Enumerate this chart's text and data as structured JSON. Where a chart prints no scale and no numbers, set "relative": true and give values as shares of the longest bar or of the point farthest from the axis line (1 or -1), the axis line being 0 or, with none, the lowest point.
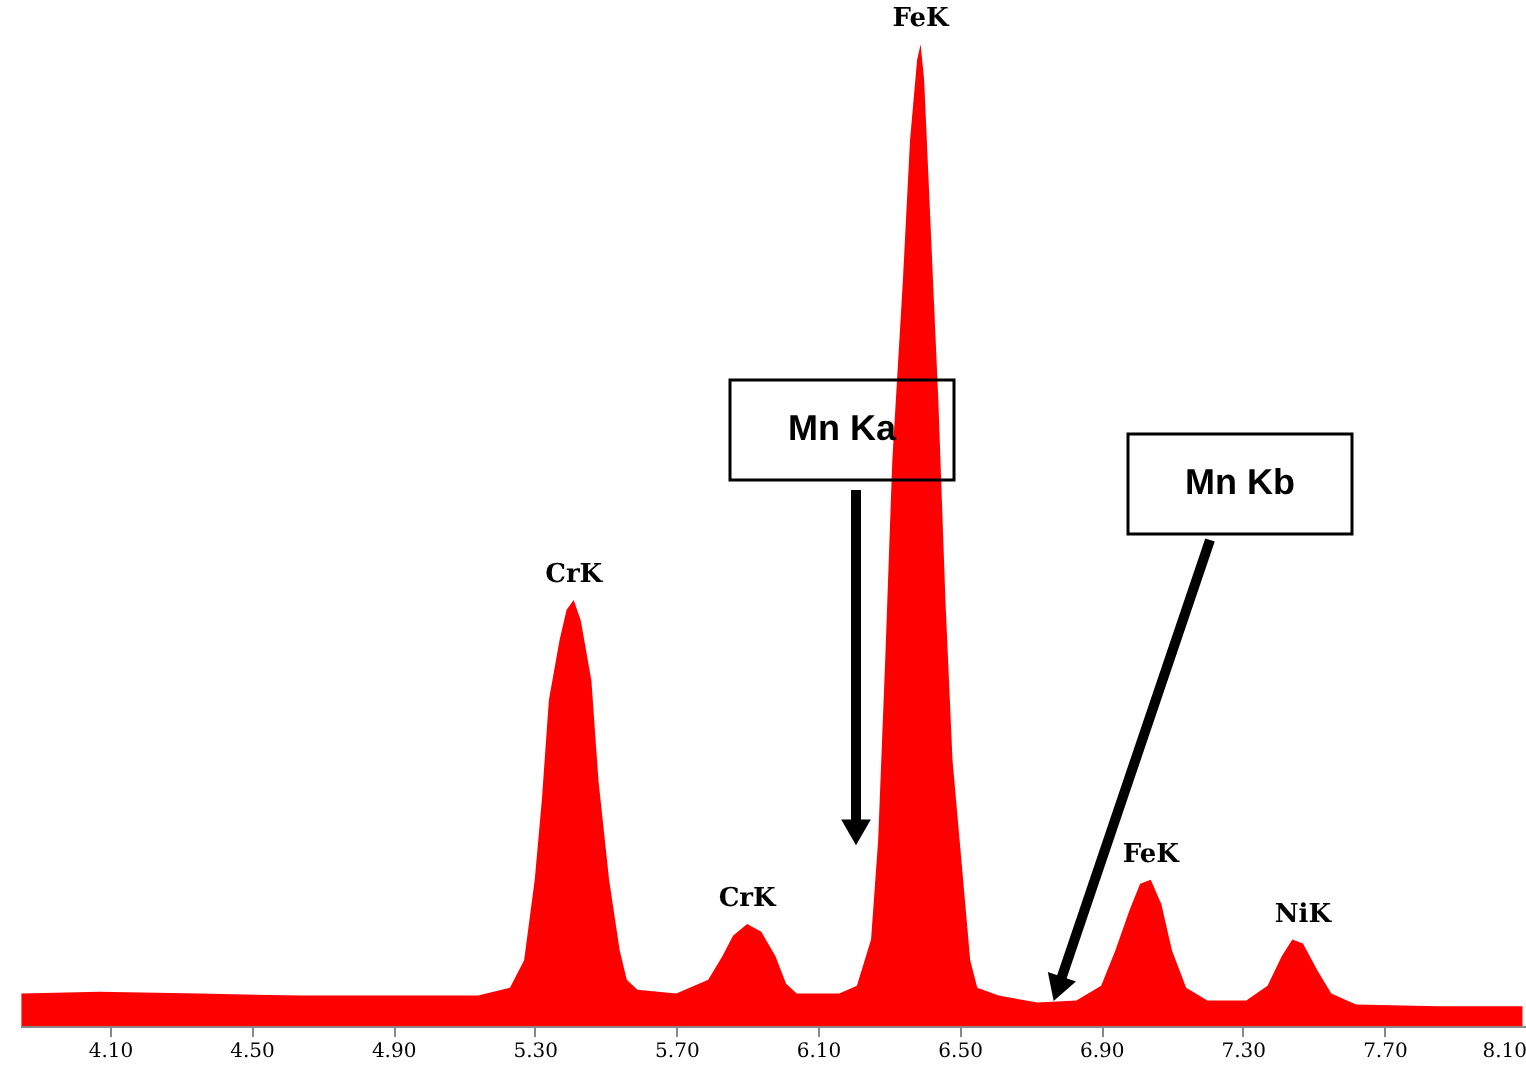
{
  "chart_data": {
    "type": "area",
    "relative": true,
    "color": "#ff0000",
    "grid": false,
    "tick_labels": "x",
    "x": [
      3.85,
      4.07,
      4.35,
      4.64,
      4.92,
      5.14,
      5.23,
      5.27,
      5.3,
      5.32,
      5.34,
      5.37,
      5.39,
      5.41,
      5.43,
      5.46,
      5.48,
      5.51,
      5.54,
      5.56,
      5.59,
      5.7,
      5.79,
      5.83,
      5.86,
      5.9,
      5.94,
      5.98,
      6.01,
      6.04,
      6.16,
      6.21,
      6.25,
      6.27,
      6.29,
      6.31,
      6.34,
      6.36,
      6.38,
      6.39,
      6.4,
      6.42,
      6.44,
      6.46,
      6.48,
      6.51,
      6.53,
      6.55,
      6.61,
      6.72,
      6.83,
      6.9,
      6.94,
      6.98,
      7.01,
      7.04,
      7.07,
      7.1,
      7.14,
      7.2,
      7.31,
      7.37,
      7.41,
      7.44,
      7.47,
      7.51,
      7.55,
      7.62,
      7.85,
      8.09
    ],
    "values": [
      0.033,
      0.035,
      0.033,
      0.031,
      0.031,
      0.031,
      0.039,
      0.067,
      0.149,
      0.23,
      0.332,
      0.393,
      0.424,
      0.434,
      0.413,
      0.352,
      0.25,
      0.149,
      0.077,
      0.047,
      0.037,
      0.033,
      0.047,
      0.071,
      0.092,
      0.104,
      0.096,
      0.071,
      0.043,
      0.033,
      0.033,
      0.041,
      0.088,
      0.189,
      0.373,
      0.576,
      0.76,
      0.902,
      0.984,
      1,
      0.963,
      0.8,
      0.637,
      0.434,
      0.271,
      0.149,
      0.067,
      0.039,
      0.031,
      0.024,
      0.026,
      0.041,
      0.077,
      0.118,
      0.145,
      0.149,
      0.124,
      0.077,
      0.039,
      0.026,
      0.026,
      0.041,
      0.071,
      0.088,
      0.084,
      0.057,
      0.033,
      0.022,
      0.02,
      0.02
    ],
    "xlim": [
      3.846,
      8.1
    ],
    "xticks": [
      {
        "value": 4.1,
        "label": "4.10"
      },
      {
        "value": 4.5,
        "label": "4.50"
      },
      {
        "value": 4.9,
        "label": "4.90"
      },
      {
        "value": 5.3,
        "label": "5.30"
      },
      {
        "value": 5.7,
        "label": "5.70"
      },
      {
        "value": 6.1,
        "label": "6.10"
      },
      {
        "value": 6.5,
        "label": "6.50"
      },
      {
        "value": 6.9,
        "label": "6.90"
      },
      {
        "value": 7.3,
        "label": "7.30"
      },
      {
        "value": 7.7,
        "label": "7.70"
      },
      {
        "value": 8.1,
        "label": "8.10"
      }
    ],
    "annotations": [
      {
        "text": "CrK",
        "x": 5.41,
        "y": 0.434
      },
      {
        "text": "CrK",
        "x": 5.9,
        "y": 0.104
      },
      {
        "text": "FeK",
        "x": 6.39,
        "y": 1
      },
      {
        "text": "FeK",
        "x": 7.04,
        "y": 0.149
      },
      {
        "text": "NiK",
        "x": 7.47,
        "y": 0.088
      },
      "Mn Ka",
      "Mn Kb"
    ]
  }
}
